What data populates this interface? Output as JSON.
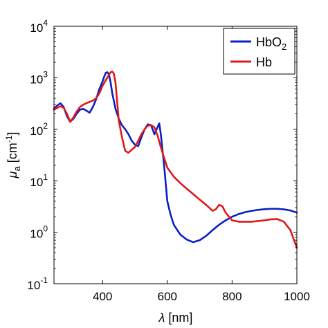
{
  "chart_data": {
    "type": "line",
    "xlabel_symbol": "λ",
    "xlabel_unit": "[nm]",
    "ylabel_symbol": "μ",
    "ylabel_sub": "a",
    "ylabel_unit_pre": "[cm",
    "ylabel_unit_sup": "-1",
    "ylabel_unit_post": "]",
    "xlim": [
      250,
      1000
    ],
    "ylim": [
      0.1,
      10000
    ],
    "yscale": "log",
    "x_ticks": [
      400,
      600,
      800,
      1000
    ],
    "x_tick_labels": [
      "400",
      "600",
      "800",
      "1000"
    ],
    "y_ticks": [
      {
        "value": 0.1,
        "base": "10",
        "exp": "-1"
      },
      {
        "value": 1,
        "base": "10",
        "exp": "0"
      },
      {
        "value": 10,
        "base": "10",
        "exp": "1"
      },
      {
        "value": 100,
        "base": "10",
        "exp": "2"
      },
      {
        "value": 1000,
        "base": "10",
        "exp": "3"
      },
      {
        "value": 10000,
        "base": "10",
        "exp": "4"
      }
    ],
    "grid": false,
    "legend_position": "top-right",
    "series": [
      {
        "name": "HbO2",
        "legend_base": "HbO",
        "legend_sub": "2",
        "color": "#0a1ec8",
        "x": [
          250,
          260,
          270,
          280,
          290,
          300,
          310,
          320,
          330,
          340,
          350,
          360,
          370,
          380,
          390,
          400,
          405,
          410,
          415,
          420,
          425,
          430,
          440,
          450,
          460,
          470,
          480,
          490,
          500,
          510,
          520,
          530,
          540,
          550,
          560,
          570,
          575,
          580,
          590,
          600,
          610,
          620,
          640,
          660,
          680,
          700,
          720,
          740,
          760,
          780,
          800,
          820,
          840,
          860,
          880,
          900,
          920,
          940,
          960,
          980,
          1000
        ],
        "y": [
          250,
          290,
          320,
          270,
          180,
          140,
          160,
          200,
          240,
          250,
          230,
          210,
          270,
          380,
          600,
          850,
          1050,
          1250,
          1280,
          1150,
          800,
          500,
          250,
          160,
          120,
          100,
          80,
          60,
          50,
          47,
          70,
          100,
          125,
          120,
          80,
          110,
          130,
          80,
          20,
          4,
          2.2,
          1.4,
          0.9,
          0.72,
          0.64,
          0.7,
          0.85,
          1.1,
          1.4,
          1.7,
          2.0,
          2.25,
          2.45,
          2.6,
          2.72,
          2.8,
          2.85,
          2.85,
          2.78,
          2.65,
          2.4
        ]
      },
      {
        "name": "Hb",
        "legend_base": "Hb",
        "legend_sub": "",
        "color": "#e01818",
        "x": [
          250,
          260,
          270,
          280,
          290,
          300,
          310,
          320,
          330,
          340,
          350,
          360,
          370,
          380,
          390,
          400,
          410,
          420,
          425,
          430,
          435,
          440,
          445,
          450,
          460,
          470,
          480,
          490,
          500,
          510,
          520,
          530,
          540,
          550,
          560,
          570,
          580,
          590,
          600,
          620,
          640,
          660,
          680,
          700,
          720,
          740,
          750,
          760,
          770,
          780,
          800,
          820,
          840,
          860,
          880,
          900,
          920,
          940,
          960,
          980,
          1000
        ],
        "y": [
          240,
          260,
          280,
          260,
          200,
          140,
          170,
          220,
          270,
          300,
          320,
          340,
          360,
          400,
          500,
          700,
          900,
          1150,
          1280,
          1320,
          1200,
          800,
          350,
          150,
          70,
          38,
          35,
          40,
          45,
          60,
          80,
          100,
          118,
          120,
          110,
          75,
          45,
          28,
          18,
          12,
          9,
          7,
          5.5,
          4.3,
          3.4,
          2.6,
          2.8,
          3.4,
          3.2,
          2.4,
          1.7,
          1.6,
          1.6,
          1.6,
          1.65,
          1.7,
          1.78,
          1.8,
          1.6,
          1.1,
          0.5
        ]
      }
    ]
  }
}
